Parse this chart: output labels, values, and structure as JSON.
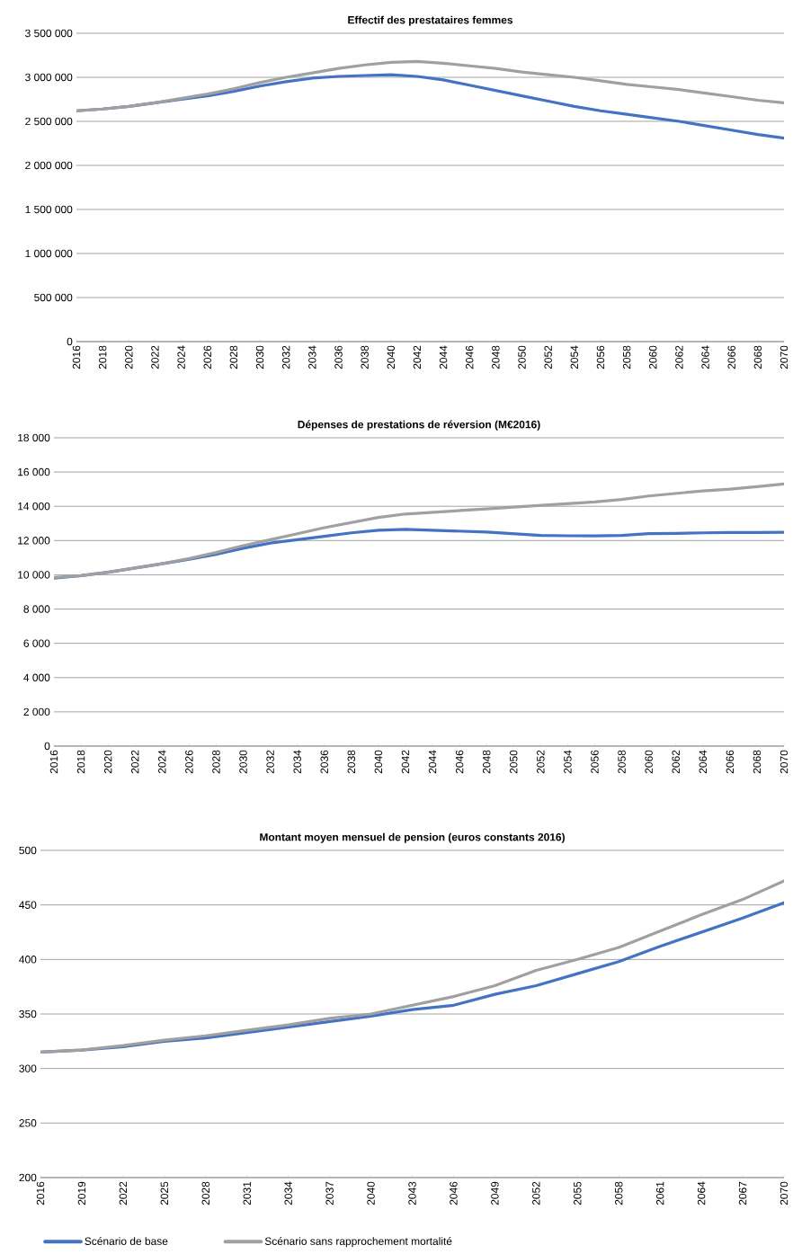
{
  "chart_data": [
    {
      "type": "line",
      "title": "Effectif des prestataires femmes",
      "x": [
        2016,
        2018,
        2020,
        2022,
        2024,
        2026,
        2028,
        2030,
        2032,
        2034,
        2036,
        2038,
        2040,
        2042,
        2044,
        2046,
        2048,
        2050,
        2052,
        2054,
        2056,
        2058,
        2060,
        2062,
        2064,
        2066,
        2068,
        2070
      ],
      "series": [
        {
          "color": "#4472c4",
          "values": [
            2620000,
            2640000,
            2670000,
            2710000,
            2750000,
            2790000,
            2840000,
            2900000,
            2950000,
            2990000,
            3010000,
            3020000,
            3030000,
            3010000,
            2970000,
            2910000,
            2850000,
            2790000,
            2730000,
            2670000,
            2620000,
            2580000,
            2540000,
            2500000,
            2450000,
            2400000,
            2350000,
            2310000
          ]
        },
        {
          "color": "#a0a0a0",
          "values": [
            2620000,
            2640000,
            2670000,
            2710000,
            2760000,
            2810000,
            2870000,
            2940000,
            3000000,
            3050000,
            3100000,
            3140000,
            3170000,
            3180000,
            3160000,
            3130000,
            3100000,
            3060000,
            3030000,
            3000000,
            2960000,
            2920000,
            2890000,
            2860000,
            2820000,
            2780000,
            2740000,
            2710000
          ]
        }
      ],
      "xlim": [
        2016,
        2070
      ],
      "xticks": [
        2016,
        2018,
        2020,
        2022,
        2024,
        2026,
        2028,
        2030,
        2032,
        2034,
        2036,
        2038,
        2040,
        2042,
        2044,
        2046,
        2048,
        2050,
        2052,
        2054,
        2056,
        2058,
        2060,
        2062,
        2064,
        2066,
        2068,
        2070
      ],
      "ylim": [
        0,
        3500000
      ],
      "yticks": [
        0,
        {
          "value": 500000,
          "label": "500 000"
        },
        {
          "value": 1000000,
          "label": "1 000 000"
        },
        {
          "value": 1500000,
          "label": "1 500 000"
        },
        {
          "value": 2000000,
          "label": "2 000 000"
        },
        {
          "value": 2500000,
          "label": "2 500 000"
        },
        {
          "value": 3000000,
          "label": "3 000 000"
        },
        {
          "value": 3500000,
          "label": "3 500 000"
        }
      ],
      "grid": "y"
    },
    {
      "type": "line",
      "title": "Dépenses de prestations de réversion (M€2016)",
      "x": [
        2016,
        2018,
        2020,
        2022,
        2024,
        2026,
        2028,
        2030,
        2032,
        2034,
        2036,
        2038,
        2040,
        2042,
        2044,
        2046,
        2048,
        2050,
        2052,
        2054,
        2056,
        2058,
        2060,
        2062,
        2064,
        2066,
        2068,
        2070
      ],
      "series": [
        {
          "color": "#4472c4",
          "values": [
            9800,
            9950,
            10150,
            10400,
            10650,
            10900,
            11200,
            11550,
            11850,
            12050,
            12250,
            12450,
            12600,
            12650,
            12600,
            12550,
            12500,
            12400,
            12300,
            12280,
            12270,
            12300,
            12400,
            12420,
            12450,
            12470,
            12470,
            12480
          ]
        },
        {
          "color": "#a0a0a0",
          "values": [
            9850,
            9950,
            10150,
            10400,
            10650,
            10950,
            11300,
            11700,
            12050,
            12400,
            12750,
            13050,
            13350,
            13550,
            13650,
            13750,
            13850,
            13950,
            14050,
            14150,
            14250,
            14400,
            14600,
            14750,
            14900,
            15000,
            15150,
            15300
          ]
        }
      ],
      "xlim": [
        2016,
        2070
      ],
      "xticks": [
        2016,
        2018,
        2020,
        2022,
        2024,
        2026,
        2028,
        2030,
        2032,
        2034,
        2036,
        2038,
        2040,
        2042,
        2044,
        2046,
        2048,
        2050,
        2052,
        2054,
        2056,
        2058,
        2060,
        2062,
        2064,
        2066,
        2068,
        2070
      ],
      "ylim": [
        0,
        18000
      ],
      "yticks": [
        0,
        {
          "value": 2000,
          "label": "2 000"
        },
        {
          "value": 4000,
          "label": "4 000"
        },
        {
          "value": 6000,
          "label": "6 000"
        },
        {
          "value": 8000,
          "label": "8 000"
        },
        {
          "value": 10000,
          "label": "10 000"
        },
        {
          "value": 12000,
          "label": "12 000"
        },
        {
          "value": 14000,
          "label": "14 000"
        },
        {
          "value": 16000,
          "label": "16 000"
        },
        {
          "value": 18000,
          "label": "18 000"
        }
      ],
      "grid": "y"
    },
    {
      "type": "line",
      "title": "Montant moyen mensuel de pension (euros constants 2016)",
      "x": [
        2016,
        2019,
        2022,
        2025,
        2028,
        2031,
        2034,
        2037,
        2040,
        2043,
        2046,
        2049,
        2052,
        2055,
        2058,
        2061,
        2064,
        2067,
        2070
      ],
      "series": [
        {
          "name": "Scénario de base",
          "color": "#4472c4",
          "values": [
            315,
            317,
            320,
            325,
            328,
            333,
            338,
            343,
            348,
            354,
            358,
            368,
            376,
            387,
            398,
            412,
            425,
            438,
            452
          ]
        },
        {
          "name": "Scénario sans rapprochement mortalité",
          "color": "#a0a0a0",
          "values": [
            315,
            317,
            321,
            326,
            330,
            335,
            340,
            346,
            350,
            358,
            366,
            376,
            390,
            400,
            411,
            426,
            441,
            455,
            472
          ]
        }
      ],
      "xlim": [
        2016,
        2070
      ],
      "xticks": [
        2016,
        2019,
        2022,
        2025,
        2028,
        2031,
        2034,
        2037,
        2040,
        2043,
        2046,
        2049,
        2052,
        2055,
        2058,
        2061,
        2064,
        2067,
        2070
      ],
      "ylim": [
        200,
        500
      ],
      "yticks": [
        200,
        250,
        300,
        350,
        400,
        450,
        500
      ],
      "grid": "y",
      "legend": "bottom"
    }
  ]
}
